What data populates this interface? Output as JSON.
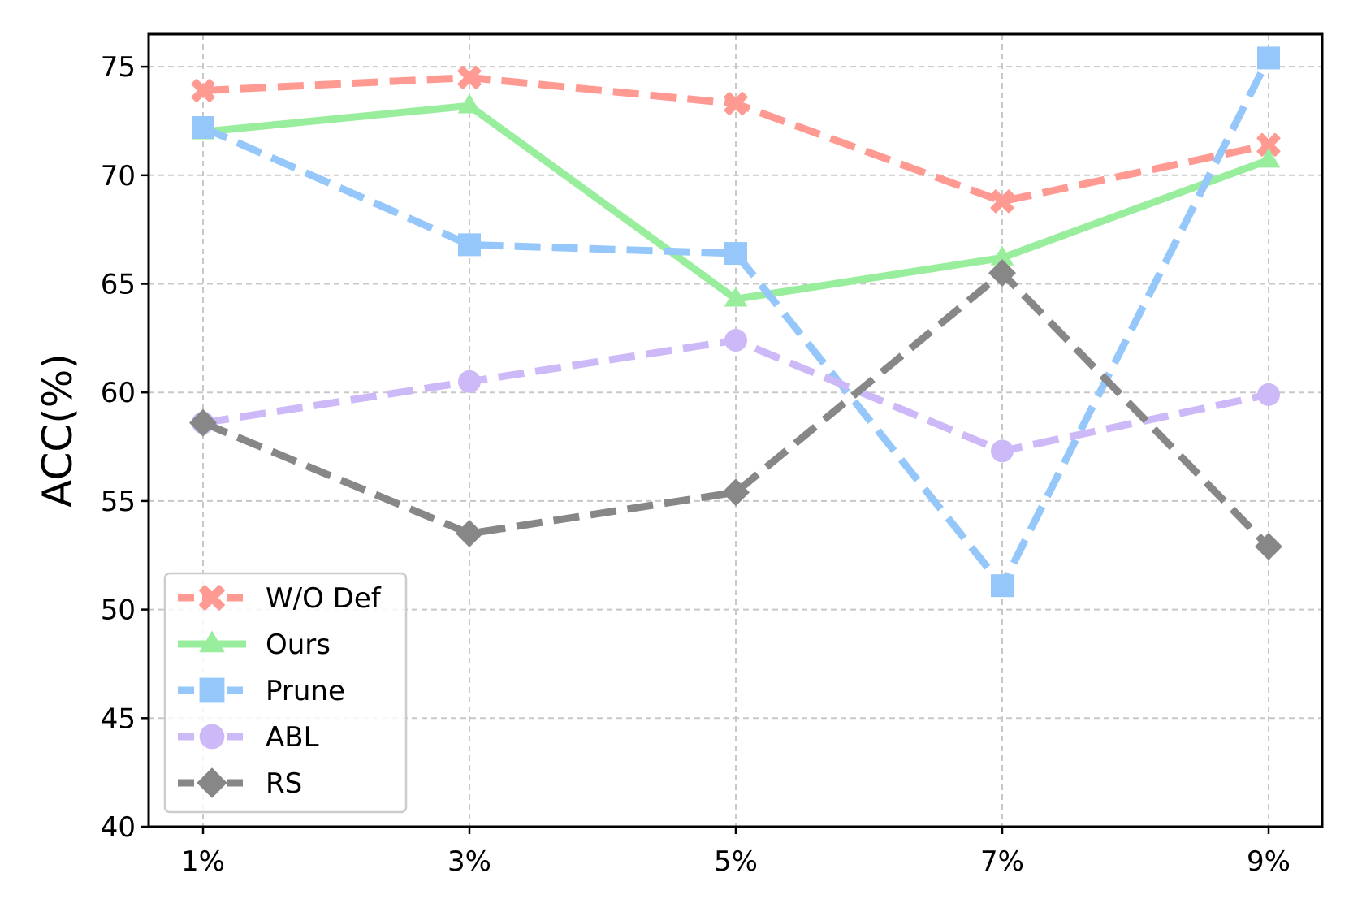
{
  "chart_data": {
    "type": "line",
    "title": "",
    "xlabel": "",
    "ylabel": "ACC(%)",
    "categories": [
      "1%",
      "3%",
      "5%",
      "7%",
      "9%"
    ],
    "ylim": [
      40,
      76.5
    ],
    "yticks": [
      40,
      45,
      50,
      55,
      60,
      65,
      70,
      75
    ],
    "grid": true,
    "legend_position": "lower-left",
    "series": [
      {
        "name": "W/O Def",
        "values": [
          73.9,
          74.5,
          73.3,
          68.8,
          71.4
        ],
        "color": "#FF9A93",
        "marker": "x-thick",
        "dash": "dashed"
      },
      {
        "name": "Ours",
        "values": [
          72.0,
          73.2,
          64.3,
          66.2,
          70.7
        ],
        "color": "#98EE9C",
        "marker": "triangle",
        "dash": "solid"
      },
      {
        "name": "Prune",
        "values": [
          72.2,
          66.8,
          66.4,
          51.1,
          75.4
        ],
        "color": "#96C7FA",
        "marker": "square",
        "dash": "dashed"
      },
      {
        "name": "ABL",
        "values": [
          58.6,
          60.5,
          62.4,
          57.3,
          59.9
        ],
        "color": "#CEB9F8",
        "marker": "circle",
        "dash": "dashed"
      },
      {
        "name": "RS",
        "values": [
          58.6,
          53.5,
          55.4,
          65.5,
          52.9
        ],
        "color": "#878787",
        "marker": "diamond",
        "dash": "dashed"
      }
    ]
  }
}
